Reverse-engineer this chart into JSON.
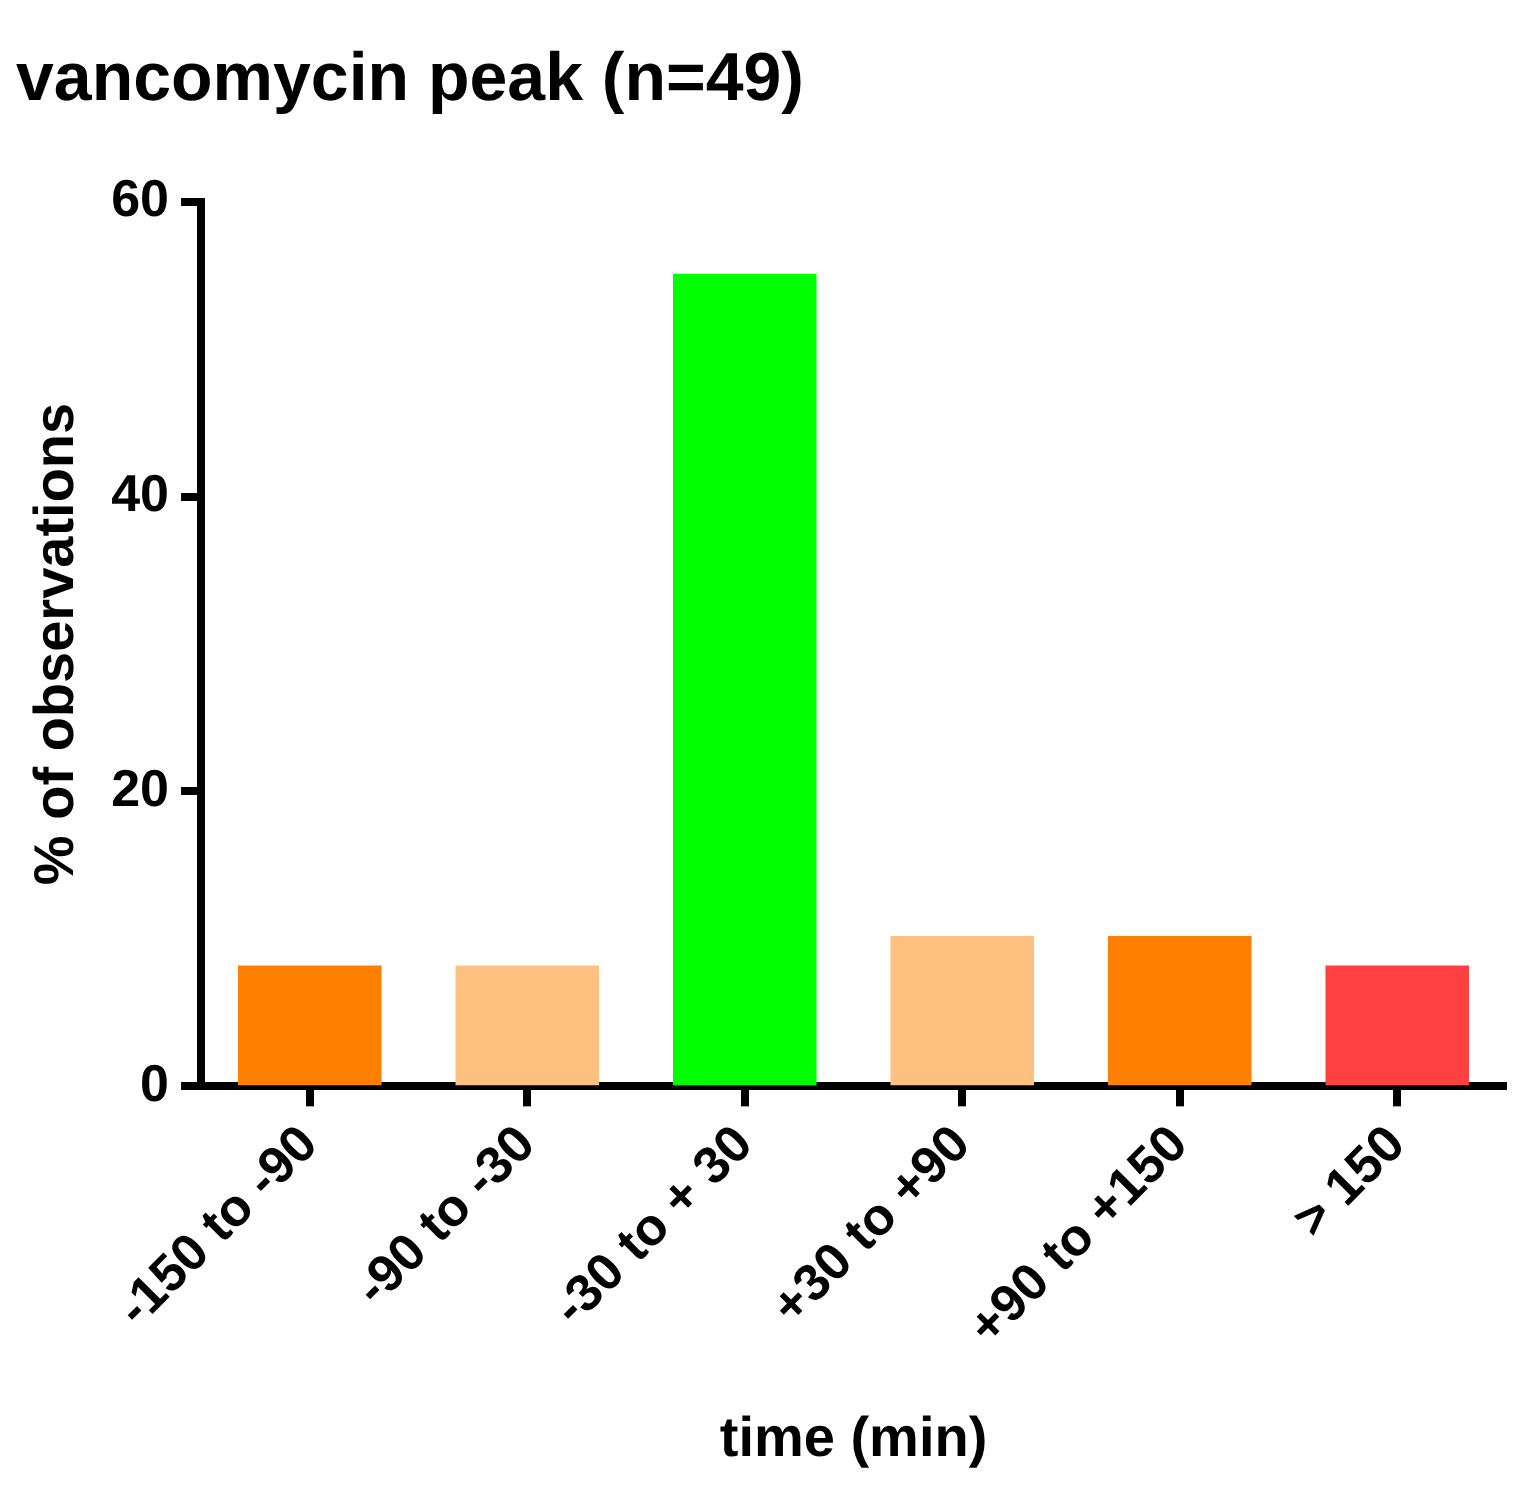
{
  "chart_data": {
    "type": "bar",
    "title": "vancomycin peak (n=49)",
    "xlabel": "time (min)",
    "ylabel": "% of observations",
    "categories": [
      "-150 to -90",
      "-90 to -30",
      "-30 to + 30",
      "+30 to +90",
      "+90 to +150",
      "> 150"
    ],
    "values": [
      8.2,
      8.2,
      55.1,
      10.2,
      10.2,
      8.2
    ],
    "colors": [
      "#ff8000",
      "#ffc080",
      "#00ff00",
      "#ffc080",
      "#ff8000",
      "#ff4040"
    ],
    "ylim": [
      0,
      60
    ],
    "yticks": [
      0,
      20,
      40,
      60
    ],
    "grid": false,
    "legend": false
  }
}
